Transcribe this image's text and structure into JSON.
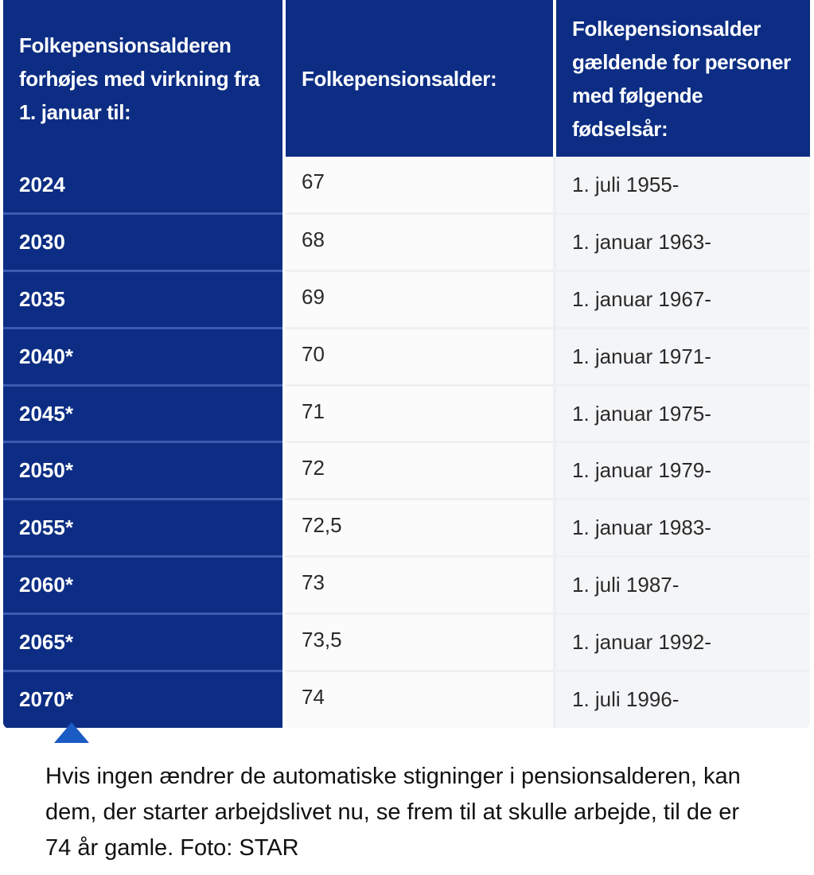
{
  "table": {
    "headers": [
      "Folkepensionsalderen forhøjes med virkning fra 1. januar til:",
      "Folkepensionsalder:",
      "Folkepensionsalder gældende for personer med følgende fødselsår:"
    ],
    "rows": [
      {
        "year": "2024",
        "age": "67",
        "birth": "1. juli 1955-"
      },
      {
        "year": "2030",
        "age": "68",
        "birth": "1. januar 1963-"
      },
      {
        "year": "2035",
        "age": "69",
        "birth": "1. januar 1967-"
      },
      {
        "year": "2040*",
        "age": "70",
        "birth": "1. januar 1971-"
      },
      {
        "year": "2045*",
        "age": "71",
        "birth": "1. januar 1975-"
      },
      {
        "year": "2050*",
        "age": "72",
        "birth": "1. januar 1979-"
      },
      {
        "year": "2055*",
        "age": "72,5",
        "birth": "1. januar 1983-"
      },
      {
        "year": "2060*",
        "age": "73",
        "birth": "1. juli 1987-"
      },
      {
        "year": "2065*",
        "age": "73,5",
        "birth": "1. januar 1992-"
      },
      {
        "year": "2070*",
        "age": "74",
        "birth": "1. juli 1996-"
      }
    ]
  },
  "caption": "Hvis ingen ændrer de automatiske stigninger i pensionsalderen, kan dem, der starter arbejdslivet nu, se frem til at skulle arbejde, til de er 74 år gamle. Foto: STAR",
  "colors": {
    "header_bg": "#0c2d83",
    "caret": "#1a5bc4"
  },
  "icons": {
    "caret": "caret-up-icon"
  }
}
